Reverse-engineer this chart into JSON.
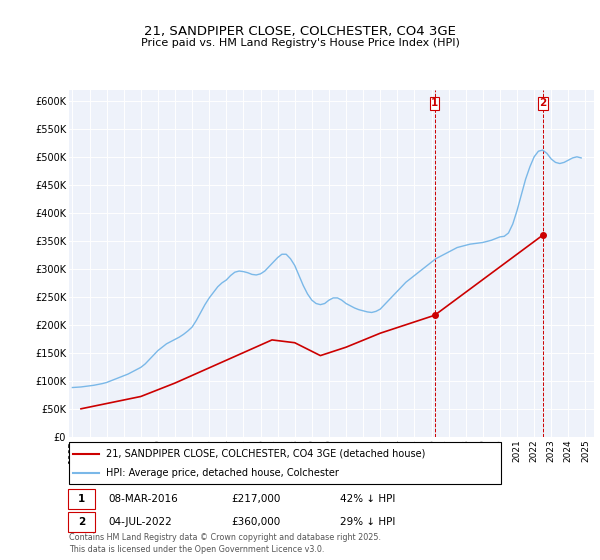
{
  "title": "21, SANDPIPER CLOSE, COLCHESTER, CO4 3GE",
  "subtitle": "Price paid vs. HM Land Registry's House Price Index (HPI)",
  "ylabel_ticks": [
    "£0",
    "£50K",
    "£100K",
    "£150K",
    "£200K",
    "£250K",
    "£300K",
    "£350K",
    "£400K",
    "£450K",
    "£500K",
    "£550K",
    "£600K"
  ],
  "ytick_values": [
    0,
    50000,
    100000,
    150000,
    200000,
    250000,
    300000,
    350000,
    400000,
    450000,
    500000,
    550000,
    600000
  ],
  "ylim": [
    0,
    620000
  ],
  "xlim_start": 1994.8,
  "xlim_end": 2025.5,
  "background_color": "#ffffff",
  "plot_background": "#eef2fa",
  "grid_color": "#ffffff",
  "hpi_color": "#7ab8e8",
  "price_color": "#cc0000",
  "marker1_date": 2016.18,
  "marker1_price": 217000,
  "marker2_date": 2022.5,
  "marker2_price": 360000,
  "legend_line1": "21, SANDPIPER CLOSE, COLCHESTER, CO4 3GE (detached house)",
  "legend_line2": "HPI: Average price, detached house, Colchester",
  "annotation1_date": "08-MAR-2016",
  "annotation1_price": "£217,000",
  "annotation1_hpi": "42% ↓ HPI",
  "annotation2_date": "04-JUL-2022",
  "annotation2_price": "£360,000",
  "annotation2_hpi": "29% ↓ HPI",
  "footer": "Contains HM Land Registry data © Crown copyright and database right 2025.\nThis data is licensed under the Open Government Licence v3.0.",
  "hpi_x": [
    1995.0,
    1995.25,
    1995.5,
    1995.75,
    1996.0,
    1996.25,
    1996.5,
    1996.75,
    1997.0,
    1997.25,
    1997.5,
    1997.75,
    1998.0,
    1998.25,
    1998.5,
    1998.75,
    1999.0,
    1999.25,
    1999.5,
    1999.75,
    2000.0,
    2000.25,
    2000.5,
    2000.75,
    2001.0,
    2001.25,
    2001.5,
    2001.75,
    2002.0,
    2002.25,
    2002.5,
    2002.75,
    2003.0,
    2003.25,
    2003.5,
    2003.75,
    2004.0,
    2004.25,
    2004.5,
    2004.75,
    2005.0,
    2005.25,
    2005.5,
    2005.75,
    2006.0,
    2006.25,
    2006.5,
    2006.75,
    2007.0,
    2007.25,
    2007.5,
    2007.75,
    2008.0,
    2008.25,
    2008.5,
    2008.75,
    2009.0,
    2009.25,
    2009.5,
    2009.75,
    2010.0,
    2010.25,
    2010.5,
    2010.75,
    2011.0,
    2011.25,
    2011.5,
    2011.75,
    2012.0,
    2012.25,
    2012.5,
    2012.75,
    2013.0,
    2013.25,
    2013.5,
    2013.75,
    2014.0,
    2014.25,
    2014.5,
    2014.75,
    2015.0,
    2015.25,
    2015.5,
    2015.75,
    2016.0,
    2016.25,
    2016.5,
    2016.75,
    2017.0,
    2017.25,
    2017.5,
    2017.75,
    2018.0,
    2018.25,
    2018.5,
    2018.75,
    2019.0,
    2019.25,
    2019.5,
    2019.75,
    2020.0,
    2020.25,
    2020.5,
    2020.75,
    2021.0,
    2021.25,
    2021.5,
    2021.75,
    2022.0,
    2022.25,
    2022.5,
    2022.75,
    2023.0,
    2023.25,
    2023.5,
    2023.75,
    2024.0,
    2024.25,
    2024.5,
    2024.75
  ],
  "hpi_y": [
    88000,
    88500,
    89000,
    90000,
    91000,
    92000,
    93500,
    95000,
    97000,
    100000,
    103000,
    106000,
    109000,
    112000,
    116000,
    120000,
    124000,
    130000,
    138000,
    146000,
    154000,
    160000,
    166000,
    170000,
    174000,
    178000,
    183000,
    189000,
    196000,
    208000,
    222000,
    236000,
    248000,
    258000,
    268000,
    275000,
    280000,
    288000,
    294000,
    296000,
    295000,
    293000,
    290000,
    289000,
    291000,
    296000,
    304000,
    312000,
    320000,
    326000,
    326000,
    318000,
    306000,
    288000,
    270000,
    255000,
    244000,
    238000,
    236000,
    238000,
    244000,
    248000,
    248000,
    244000,
    238000,
    234000,
    230000,
    227000,
    225000,
    223000,
    222000,
    224000,
    228000,
    236000,
    244000,
    252000,
    260000,
    268000,
    276000,
    282000,
    288000,
    294000,
    300000,
    306000,
    312000,
    318000,
    322000,
    326000,
    330000,
    334000,
    338000,
    340000,
    342000,
    344000,
    345000,
    346000,
    347000,
    349000,
    351000,
    354000,
    357000,
    358000,
    364000,
    380000,
    404000,
    432000,
    460000,
    482000,
    500000,
    510000,
    512000,
    506000,
    496000,
    490000,
    488000,
    490000,
    494000,
    498000,
    500000,
    498000
  ],
  "price_x": [
    1995.5,
    1999.0,
    2001.0,
    2006.67,
    2008.0,
    2009.5,
    2011.0,
    2013.0,
    2016.18,
    2022.5
  ],
  "price_y": [
    50000,
    72000,
    96000,
    173000,
    168000,
    145000,
    160000,
    185000,
    217000,
    360000
  ]
}
